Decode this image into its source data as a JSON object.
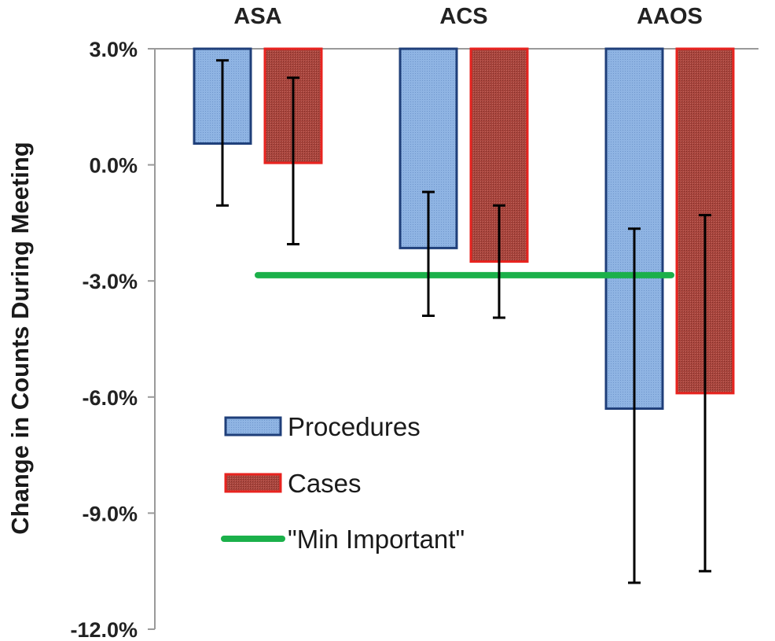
{
  "chart_data": {
    "type": "bar",
    "title": "",
    "xlabel": "",
    "ylabel": "Change in Counts During Meeting",
    "categories": [
      "ASA",
      "ACS",
      "AAOS"
    ],
    "category_axis_position": "top",
    "ylim": [
      -12.0,
      3.0
    ],
    "y_ticks": [
      3.0,
      0.0,
      -3.0,
      -6.0,
      -9.0,
      -12.0
    ],
    "y_tick_labels": [
      "3.0%",
      "0.0%",
      "-3.0%",
      "-6.0%",
      "-9.0%",
      "-12.0%"
    ],
    "series": [
      {
        "name": "Procedures",
        "color": "#8fb4e3",
        "border_color": "#1f3f7a",
        "values": [
          0.55,
          -2.15,
          -6.3
        ],
        "error_low": [
          -1.05,
          -3.9,
          -10.8
        ],
        "error_high": [
          2.7,
          -0.7,
          -1.65
        ]
      },
      {
        "name": "Cases",
        "color": "#a8453d",
        "border_color": "#e8231f",
        "values": [
          0.05,
          -2.5,
          -5.9
        ],
        "error_low": [
          -2.05,
          -3.95,
          -10.5
        ],
        "error_high": [
          2.25,
          -1.05,
          -1.3
        ]
      }
    ],
    "reference_line": {
      "name": "\"Min Important\"",
      "value": -2.85,
      "color": "#1bb04a"
    },
    "legend": {
      "placement": "lower-left",
      "entries": [
        "Procedures",
        "Cases",
        "\"Min Important\""
      ]
    },
    "grid": false
  }
}
